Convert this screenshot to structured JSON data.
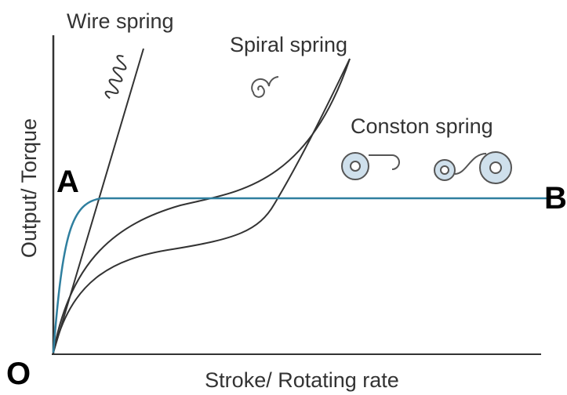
{
  "labels": {
    "wire": "Wire spring",
    "spiral": "Spiral spring",
    "constant": "Conston spring",
    "a": "A",
    "b": "B",
    "o": "O"
  },
  "axes": {
    "y": "Output/ Torque",
    "x": "Stroke/ Rotating rate"
  }
}
